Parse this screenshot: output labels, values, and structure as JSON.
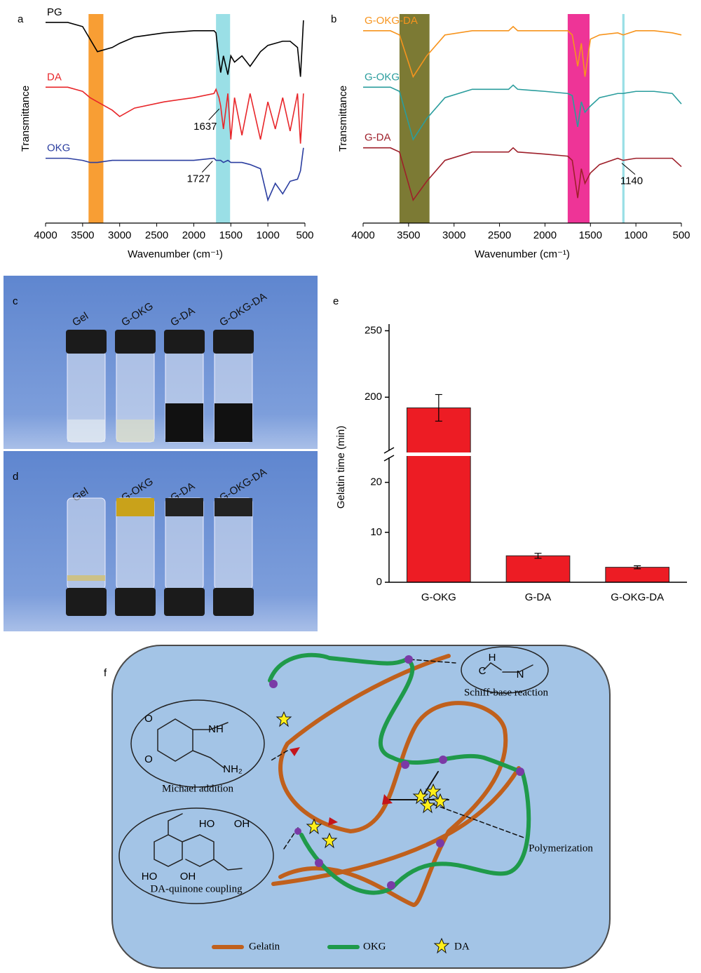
{
  "chart_data": [
    {
      "type": "line",
      "panel": "a",
      "xlabel": "Wavenumber (cm⁻¹)",
      "ylabel": "Transmittance",
      "xlim": [
        4000,
        500
      ],
      "ylim": [
        0,
        100
      ],
      "xticks": [
        4000,
        3500,
        3000,
        2500,
        2000,
        1500,
        1000,
        500
      ],
      "x": [
        4000,
        3700,
        3500,
        3400,
        3300,
        3100,
        3000,
        2800,
        2400,
        2000,
        1727,
        1700,
        1660,
        1637,
        1600,
        1540,
        1500,
        1450,
        1350,
        1240,
        1100,
        1000,
        900,
        800,
        700,
        600,
        560,
        520
      ],
      "series": [
        {
          "name": "PG",
          "color": "#000000",
          "values": [
            96,
            96,
            94,
            88,
            82,
            84,
            86,
            89,
            91,
            92,
            92,
            91,
            78,
            72,
            80,
            71,
            80,
            77,
            80,
            75,
            82,
            85,
            86,
            87,
            87,
            84,
            70,
            97
          ]
        },
        {
          "name": "DA",
          "color": "#e8262a",
          "values": [
            65,
            65,
            63,
            60,
            58,
            54,
            51,
            55,
            58,
            60,
            62,
            64,
            60,
            56,
            45,
            62,
            40,
            60,
            42,
            62,
            40,
            58,
            45,
            60,
            44,
            62,
            38,
            62
          ]
        },
        {
          "name": "OKG",
          "color": "#2b3ea0",
          "values": [
            31,
            31,
            30,
            29,
            29,
            30,
            30,
            30,
            30,
            30,
            31,
            30,
            30,
            30,
            29,
            30,
            29,
            29,
            29,
            28,
            26,
            11,
            19,
            14,
            20,
            21,
            25,
            36
          ]
        }
      ],
      "bands": [
        {
          "from": 3420,
          "to": 3220,
          "color": "#f7931e"
        },
        {
          "from": 1700,
          "to": 1510,
          "color": "#8fdbe3"
        }
      ],
      "annotations": [
        {
          "label": "1637",
          "x": 1637,
          "y": 56
        },
        {
          "label": "1727",
          "x": 1727,
          "y": 31
        }
      ]
    },
    {
      "type": "line",
      "panel": "b",
      "xlabel": "Wavenumber (cm⁻¹)",
      "ylabel": "Transmittance",
      "xlim": [
        4000,
        500
      ],
      "ylim": [
        0,
        100
      ],
      "xticks": [
        4000,
        3500,
        3000,
        2500,
        2000,
        1500,
        1000,
        500
      ],
      "x": [
        4000,
        3700,
        3600,
        3450,
        3300,
        3100,
        2800,
        2400,
        2350,
        2300,
        2000,
        1750,
        1700,
        1640,
        1600,
        1560,
        1500,
        1400,
        1200,
        1140,
        1000,
        800,
        600,
        500
      ],
      "series": [
        {
          "name": "G-OKG-DA",
          "color": "#f7941d",
          "values": [
            92,
            92,
            90,
            70,
            80,
            90,
            92,
            92,
            94,
            92,
            92,
            92,
            90,
            75,
            86,
            70,
            88,
            90,
            91,
            90,
            92,
            92,
            91,
            90
          ]
        },
        {
          "name": "G-OKG",
          "color": "#2a9d9d",
          "values": [
            65,
            65,
            63,
            40,
            50,
            60,
            64,
            64,
            66,
            64,
            63,
            62,
            61,
            46,
            58,
            53,
            56,
            60,
            62,
            62,
            63,
            63,
            62,
            57
          ]
        },
        {
          "name": "G-DA",
          "color": "#9e1f2a",
          "values": [
            36,
            36,
            34,
            11,
            20,
            30,
            34,
            34,
            36,
            34,
            33,
            32,
            30,
            12,
            26,
            19,
            24,
            28,
            31,
            30,
            31,
            31,
            31,
            27
          ]
        }
      ],
      "bands": [
        {
          "from": 3600,
          "to": 3270,
          "color": "#6e6b1e"
        },
        {
          "from": 1750,
          "to": 1510,
          "color": "#ec1e8c"
        },
        {
          "from": 1150,
          "to": 1125,
          "color": "#8fdbe3"
        }
      ],
      "annotations": [
        {
          "label": "1140",
          "x": 1140,
          "y": 30
        }
      ]
    },
    {
      "type": "bar",
      "panel": "e",
      "ylabel": "Gelatin time (min)",
      "color": "#ed1c24",
      "categories": [
        "G-OKG",
        "G-DA",
        "G-OKG-DA"
      ],
      "values": [
        192,
        5.3,
        3.0
      ],
      "errors": [
        10,
        0.5,
        0.3
      ],
      "ylims": [
        [
          0,
          25
        ],
        [
          160,
          255
        ]
      ],
      "yticks": [
        0,
        10,
        20,
        200,
        250
      ]
    }
  ],
  "photos": [
    {
      "panel": "c",
      "labels": [
        "Gel",
        "G-OKG",
        "G-DA",
        "G-OKG-DA"
      ]
    },
    {
      "panel": "d",
      "labels": [
        "Gel",
        "G-OKG",
        "G-DA",
        "G-OKG-DA"
      ]
    }
  ],
  "diagram": {
    "panel": "f",
    "reactions": [
      "Schiff-base reaction",
      "Michael addition",
      "DA-quinone coupling",
      "Polymerization"
    ],
    "atoms": {
      "schiff": [
        "H",
        "C",
        "N"
      ],
      "michael": [
        "O",
        "O",
        "NH",
        "NH₂"
      ],
      "coupling": [
        "HO",
        "OH",
        "HO",
        "OH"
      ]
    },
    "legend": [
      "Gelatin",
      "OKG",
      "DA"
    ]
  }
}
